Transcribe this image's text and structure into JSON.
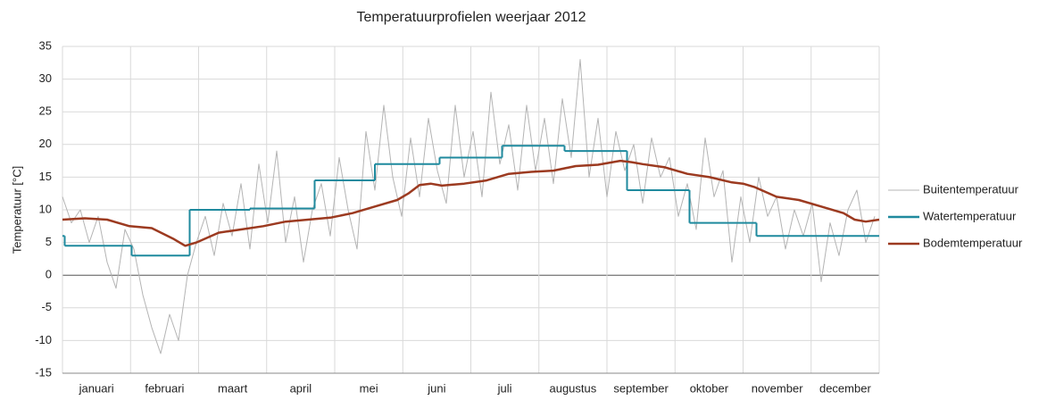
{
  "chart_data": {
    "type": "line",
    "title": "Temperatuurprofielen weerjaar 2012",
    "y_label": "Temperatuur [°C]",
    "categories": [
      "januari",
      "februari",
      "maart",
      "april",
      "mei",
      "juni",
      "juli",
      "augustus",
      "september",
      "oktober",
      "november",
      "december"
    ],
    "xlim": [
      0,
      366
    ],
    "ylim": [
      -15,
      35
    ],
    "yticks": [
      -15,
      -10,
      -5,
      0,
      5,
      10,
      15,
      20,
      25,
      30,
      35
    ],
    "grid": true,
    "legend": "right",
    "series": [
      {
        "name": "Buitentemperatuur",
        "color": "#b4b4b4",
        "step": false,
        "x": [
          0,
          4,
          8,
          12,
          16,
          20,
          24,
          28,
          32,
          36,
          40,
          44,
          48,
          52,
          56,
          60,
          64,
          68,
          72,
          76,
          80,
          84,
          88,
          92,
          96,
          100,
          104,
          108,
          112,
          116,
          120,
          124,
          128,
          132,
          136,
          140,
          144,
          148,
          152,
          156,
          160,
          164,
          168,
          172,
          176,
          180,
          184,
          188,
          192,
          196,
          200,
          204,
          208,
          212,
          216,
          220,
          224,
          228,
          232,
          236,
          240,
          244,
          248,
          252,
          256,
          260,
          264,
          268,
          272,
          276,
          280,
          284,
          288,
          292,
          296,
          300,
          304,
          308,
          312,
          316,
          320,
          324,
          328,
          332,
          336,
          340,
          344,
          348,
          352,
          356,
          360,
          364
        ],
        "values": [
          12,
          8,
          10,
          5,
          9,
          2,
          -2,
          7,
          4,
          -3,
          -8,
          -12,
          -6,
          -10,
          0,
          5,
          9,
          3,
          11,
          6,
          14,
          4,
          17,
          8,
          19,
          5,
          12,
          2,
          10,
          14,
          6,
          18,
          10,
          4,
          22,
          13,
          26,
          15,
          9,
          21,
          12,
          24,
          16,
          11,
          26,
          15,
          22,
          12,
          28,
          17,
          23,
          13,
          26,
          16,
          24,
          14,
          27,
          18,
          33,
          15,
          24,
          12,
          22,
          16,
          20,
          11,
          21,
          15,
          18,
          9,
          14,
          7,
          21,
          12,
          16,
          2,
          12,
          5,
          15,
          9,
          12,
          4,
          10,
          6,
          11,
          -1,
          8,
          3,
          10,
          13,
          5,
          9
        ]
      },
      {
        "name": "Watertemperatuur",
        "color": "#1f8a9e",
        "step": true,
        "x": [
          0,
          1,
          31,
          57,
          84,
          113,
          140,
          169,
          197,
          225,
          253,
          281,
          311
        ],
        "values": [
          6,
          4.5,
          3,
          10,
          10.2,
          14.5,
          17,
          18,
          19.8,
          19,
          13,
          8,
          6
        ]
      },
      {
        "name": "Bodemtemperatuur",
        "color": "#9c3a20",
        "step": false,
        "x": [
          0,
          10,
          20,
          30,
          40,
          50,
          55,
          60,
          70,
          80,
          90,
          100,
          110,
          120,
          130,
          140,
          150,
          155,
          160,
          165,
          170,
          180,
          190,
          200,
          210,
          220,
          230,
          240,
          250,
          255,
          260,
          270,
          280,
          290,
          300,
          305,
          310,
          320,
          330,
          340,
          350,
          355,
          360,
          366
        ],
        "values": [
          8.5,
          8.7,
          8.5,
          7.5,
          7.2,
          5.5,
          4.5,
          5.0,
          6.5,
          7.0,
          7.5,
          8.2,
          8.5,
          8.8,
          9.5,
          10.5,
          11.5,
          12.5,
          13.8,
          14.0,
          13.7,
          14.0,
          14.5,
          15.5,
          15.8,
          16.0,
          16.7,
          16.9,
          17.5,
          17.3,
          17.0,
          16.5,
          15.5,
          15.0,
          14.2,
          14.0,
          13.5,
          12.0,
          11.5,
          10.5,
          9.5,
          8.5,
          8.2,
          8.5
        ]
      }
    ]
  }
}
